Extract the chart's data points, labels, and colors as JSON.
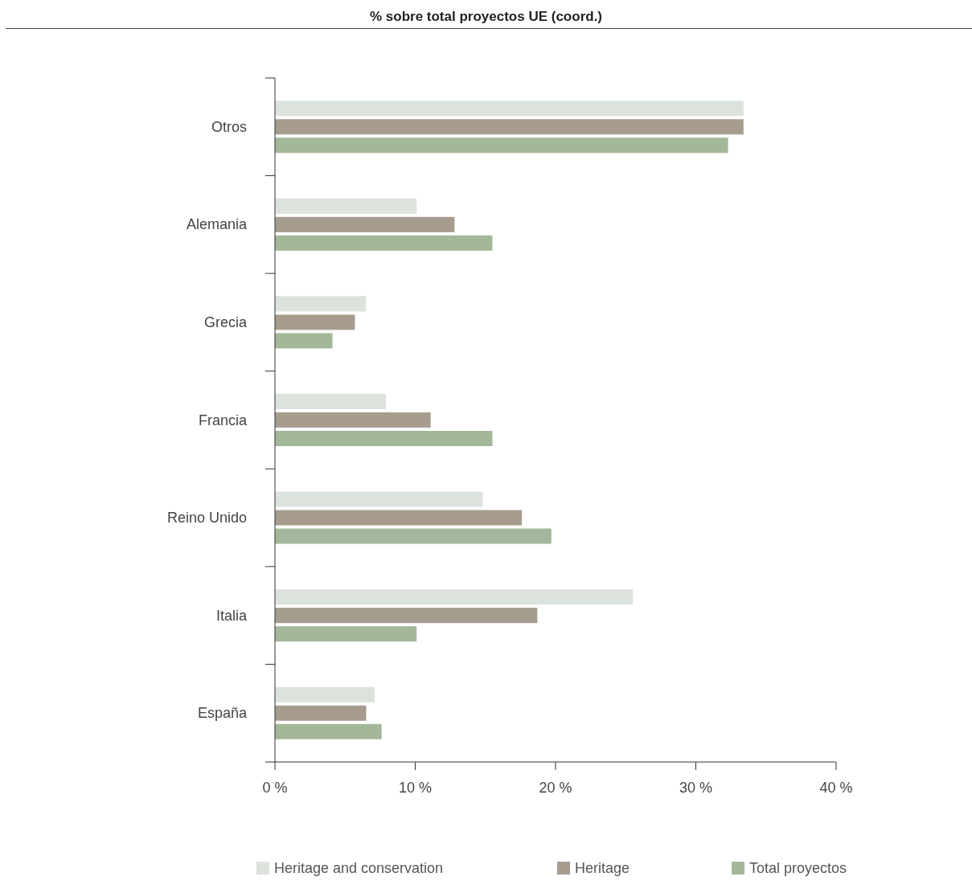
{
  "chart_data": {
    "type": "bar",
    "orientation": "horizontal",
    "title": "% sobre total proyectos UE (coord.)",
    "categories": [
      "Otros",
      "Alemania",
      "Grecia",
      "Francia",
      "Reino Unido",
      "Italia",
      "España"
    ],
    "series": [
      {
        "name": "Heritage and conservation",
        "color": "#dce2dc",
        "values": [
          33.4,
          10.1,
          6.5,
          7.9,
          14.8,
          25.5,
          7.1
        ]
      },
      {
        "name": "Heritage",
        "color": "#a69d8e",
        "values": [
          33.4,
          12.8,
          5.7,
          11.1,
          17.6,
          18.7,
          6.5
        ]
      },
      {
        "name": "Total proyectos",
        "color": "#a3b89a",
        "values": [
          32.3,
          15.5,
          4.1,
          15.5,
          19.7,
          10.1,
          7.6
        ]
      }
    ],
    "xlim": [
      0,
      40
    ],
    "xticks": [
      {
        "value": 0,
        "label": "0 %"
      },
      {
        "value": 10,
        "label": "10 %"
      },
      {
        "value": 20,
        "label": "20 %"
      },
      {
        "value": 30,
        "label": "30 %"
      },
      {
        "value": 40,
        "label": "40 %"
      }
    ],
    "grid": false,
    "legend": "bottom"
  }
}
